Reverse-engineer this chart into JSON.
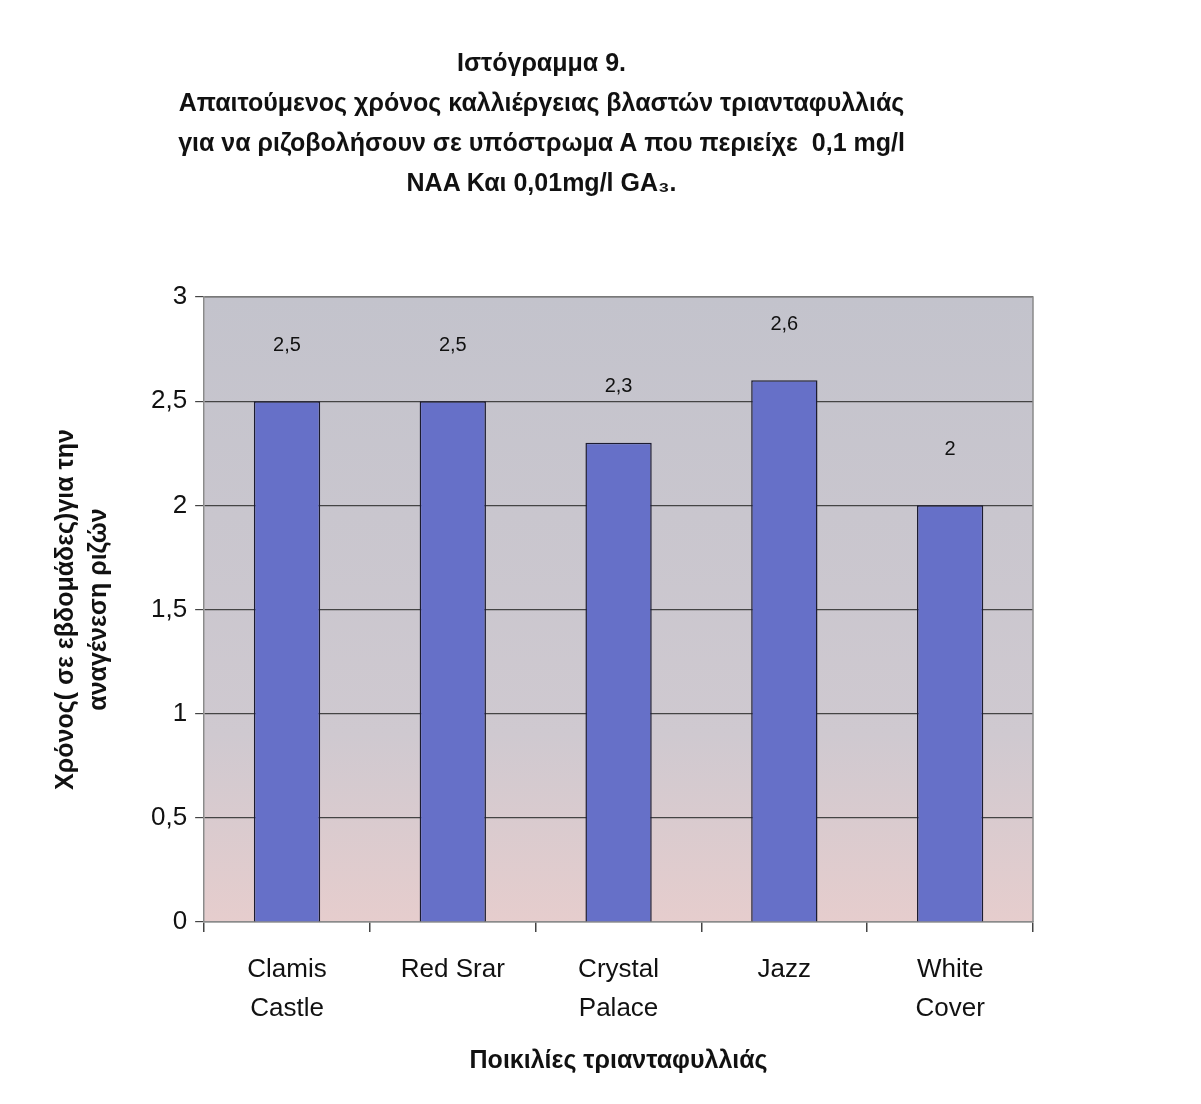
{
  "chart_data": {
    "type": "bar",
    "title": "Ιστόγραμμα 9.\nΑπαιτούμενος χρόνος καλλιέργειας βλαστών τριανταφυλλιάς\nγια να ριζοβολήσουν σε υπόστρωμα Α που περιείχε  0,1 mg/l\nNAA Και 0,01mg/l GA₃.",
    "xlabel": "Ποικιλίες τριανταφυλλιάς",
    "ylabel": "Χρόνος( σε εβδομάδες)για την\nαναγένεση ριζών",
    "categories": [
      "Clamis Castle",
      "Red Srar",
      "Crystal Palace",
      "Jazz",
      "White Cover"
    ],
    "values": [
      2.5,
      2.5,
      2.3,
      2.6,
      2
    ],
    "value_labels": [
      "2,5",
      "2,5",
      "2,3",
      "2,6",
      "2"
    ],
    "color": "#6670c8",
    "ylim": [
      0,
      3
    ],
    "yticks": [
      0,
      {
        "value": 0.5,
        "label": "0,5"
      },
      1,
      {
        "value": 1.5,
        "label": "1,5"
      },
      2,
      {
        "value": 2.5,
        "label": "2,5"
      },
      3
    ],
    "grid": "y"
  }
}
